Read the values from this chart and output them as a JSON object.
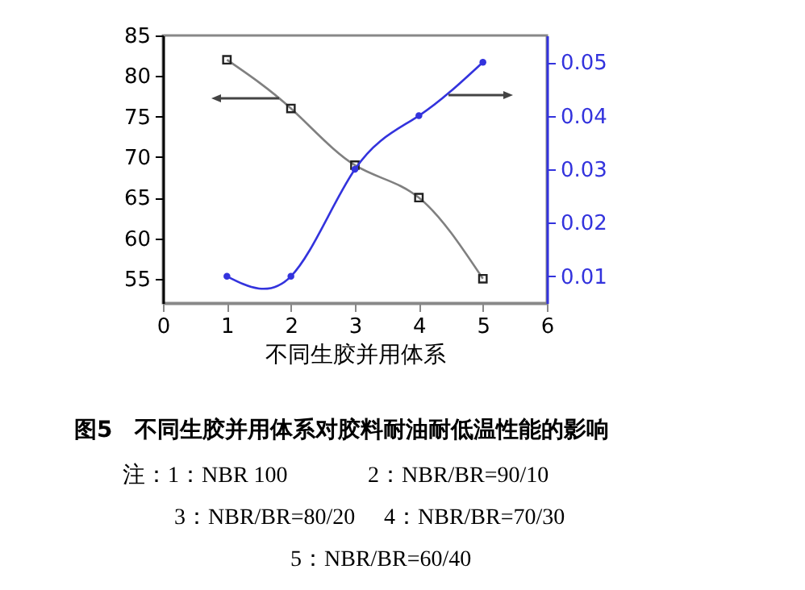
{
  "chart_data": {
    "type": "line",
    "title": "图5　不同生胶并用体系对胶料耐油耐低温性能的影响",
    "xlabel": "不同生胶并用体系",
    "x": [
      1,
      2,
      3,
      4,
      5
    ],
    "xlim": [
      0,
      6
    ],
    "xticks": [
      0,
      1,
      2,
      3,
      4,
      5,
      6
    ],
    "ylim": [
      52,
      85
    ],
    "yticks": [
      55,
      60,
      65,
      70,
      75,
      80,
      85
    ],
    "y2lim": [
      0.005,
      0.055
    ],
    "y2ticks": [
      0.01,
      0.02,
      0.03,
      0.04,
      0.05
    ],
    "series": [
      {
        "color": "#808080",
        "marker": "square",
        "values": [
          82,
          76,
          69,
          65,
          55
        ]
      },
      {
        "color": "#3333dd",
        "marker": "circle",
        "axis": "y2",
        "values": [
          0.01,
          0.01,
          0.03,
          0.04,
          0.05
        ]
      }
    ],
    "grid": false,
    "annotations": [
      "注：1：NBR 100",
      "2：NBR/BR=90/10",
      "3：NBR/BR=80/20",
      "4：NBR/BR=70/30",
      "5：NBR/BR=60/40"
    ]
  }
}
